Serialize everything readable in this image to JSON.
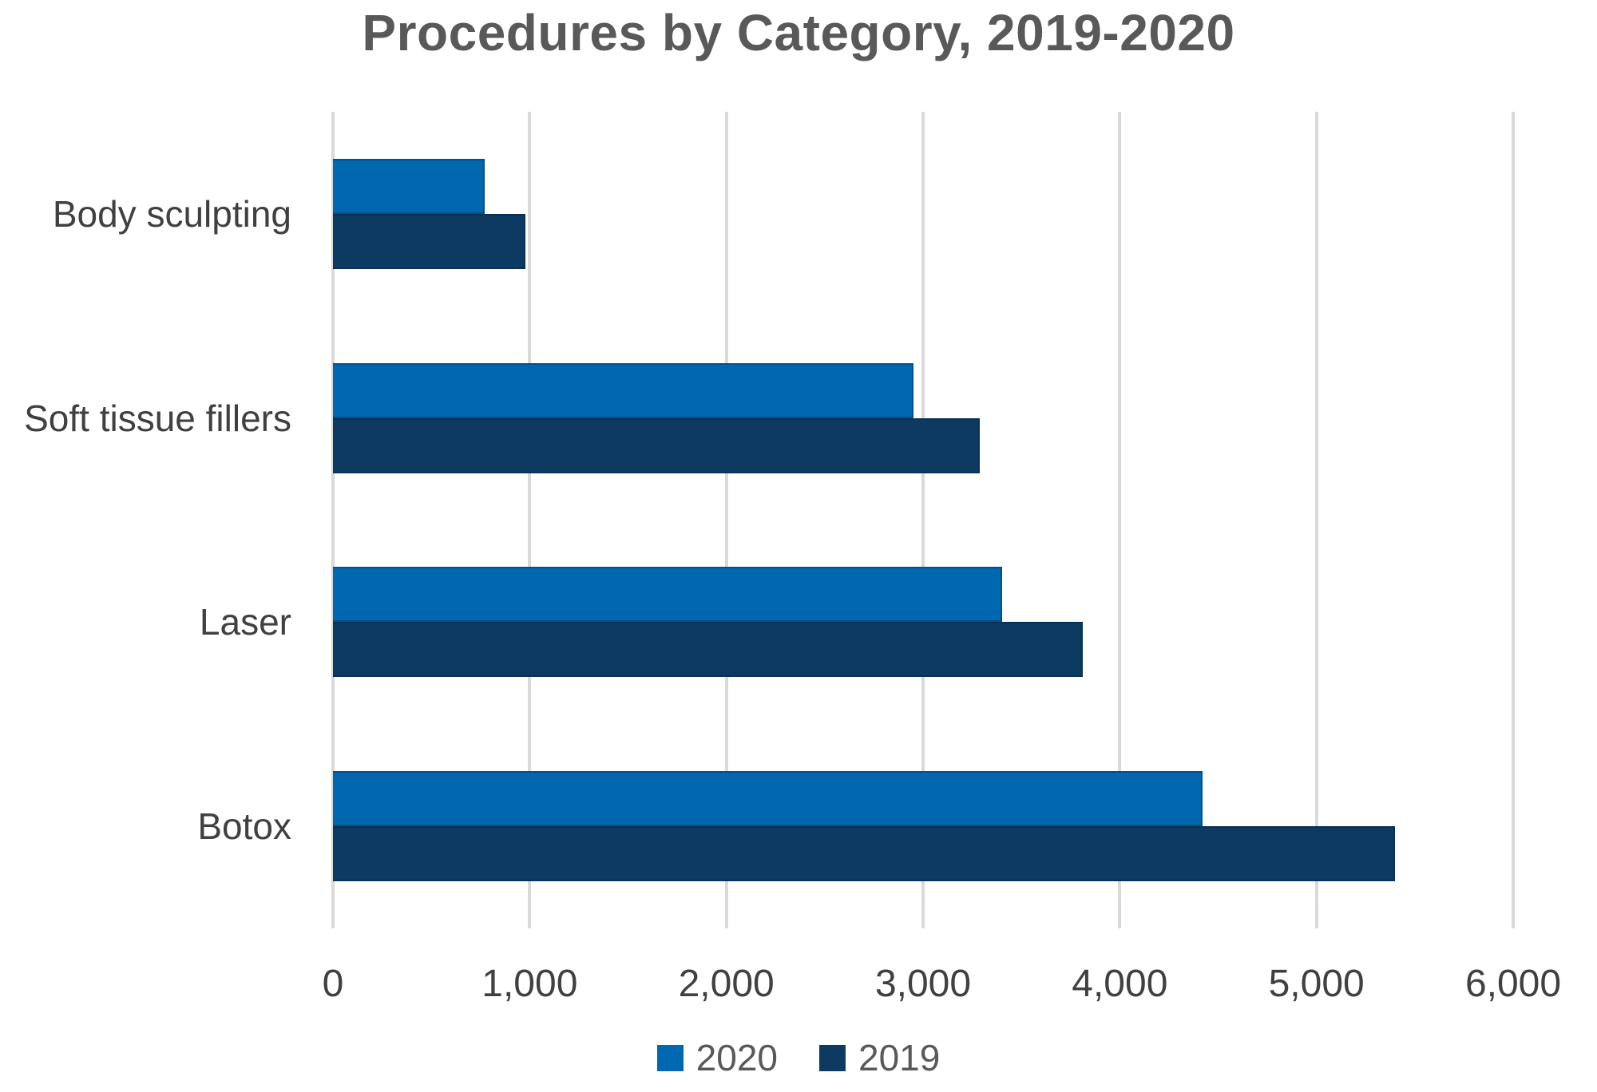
{
  "title": "Procedures by Category, 2019-2020",
  "colors": {
    "series_2020": "#0068B0",
    "series_2019": "#0C3A61",
    "gridline": "#D9D9D9",
    "axis_text": "#404040",
    "title_text": "#595959"
  },
  "legend": {
    "position": "bottom",
    "items": [
      {
        "label": "2020",
        "color": "#0068B0"
      },
      {
        "label": "2019",
        "color": "#0C3A61"
      }
    ]
  },
  "chart_data": {
    "type": "bar",
    "orientation": "horizontal",
    "title": "Procedures by Category, 2019-2020",
    "categories": [
      "Body sculpting",
      "Soft tissue fillers",
      "Laser",
      "Botox"
    ],
    "series": [
      {
        "name": "2020",
        "color": "#0068B0",
        "values": [
          770,
          2950,
          3400,
          4420
        ]
      },
      {
        "name": "2019",
        "color": "#0C3A61",
        "values": [
          980,
          3290,
          3810,
          5400
        ]
      }
    ],
    "xlabel": "",
    "ylabel": "",
    "xlim": [
      0,
      6000
    ],
    "x_tick_values": [
      0,
      1000,
      2000,
      3000,
      4000,
      5000,
      6000
    ],
    "x_tick_labels": [
      "0",
      "1,000",
      "2,000",
      "3,000",
      "4,000",
      "5,000",
      "6,000"
    ],
    "grid": true,
    "legend_position": "bottom"
  }
}
